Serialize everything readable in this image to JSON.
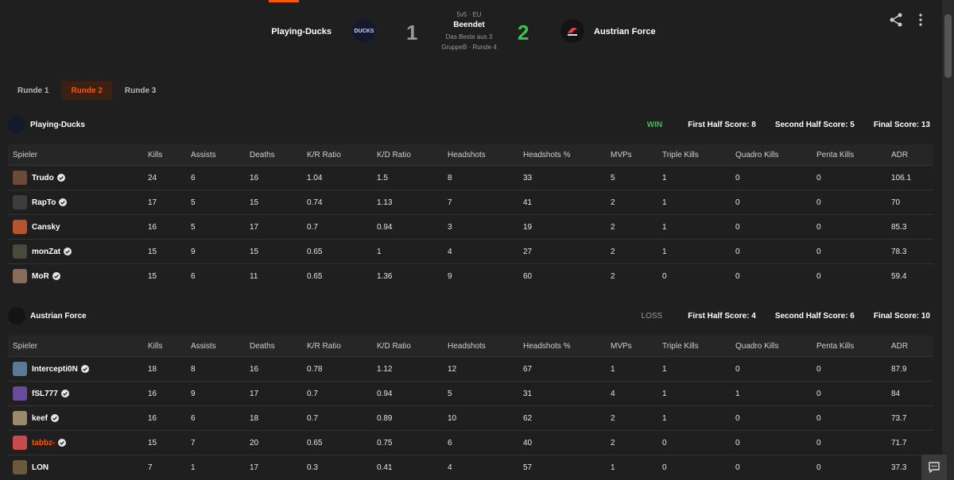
{
  "header": {
    "team_left": "Playing-Ducks",
    "team_left_logo_text": "DUCKS",
    "score_left": "1",
    "format": "5v5 · EU",
    "status": "Beendet",
    "best_of": "Das Beste aus 3",
    "group_round": "GruppeB · Runde 4",
    "score_right": "2",
    "team_right": "Austrian Force",
    "accent_color": "#ff5500",
    "win_color": "#3cc14b"
  },
  "tabs": [
    {
      "label": "Runde 1",
      "active": false
    },
    {
      "label": "Runde 2",
      "active": true
    },
    {
      "label": "Runde 3",
      "active": false
    }
  ],
  "columns": [
    "Spieler",
    "Kills",
    "Assists",
    "Deaths",
    "K/R Ratio",
    "K/D Ratio",
    "Headshots",
    "Headshots %",
    "MVPs",
    "Triple Kills",
    "Quadro Kills",
    "Penta Kills",
    "ADR"
  ],
  "teams": [
    {
      "name": "Playing-Ducks",
      "result": "WIN",
      "first_half": "First Half Score: 8",
      "second_half": "Second Half Score: 5",
      "final": "Final Score: 13",
      "players": [
        {
          "name": "Trudo",
          "verified": true,
          "stats": [
            "24",
            "6",
            "16",
            "1.04",
            "1.5",
            "8",
            "33",
            "5",
            "1",
            "0",
            "0",
            "106.1"
          ]
        },
        {
          "name": "RapTo",
          "verified": true,
          "stats": [
            "17",
            "5",
            "15",
            "0.74",
            "1.13",
            "7",
            "41",
            "2",
            "1",
            "0",
            "0",
            "70"
          ]
        },
        {
          "name": "Cansky",
          "verified": false,
          "stats": [
            "16",
            "5",
            "17",
            "0.7",
            "0.94",
            "3",
            "19",
            "2",
            "1",
            "0",
            "0",
            "85.3"
          ]
        },
        {
          "name": "monZat",
          "verified": true,
          "stats": [
            "15",
            "9",
            "15",
            "0.65",
            "1",
            "4",
            "27",
            "2",
            "1",
            "0",
            "0",
            "78.3"
          ]
        },
        {
          "name": "MoR",
          "verified": true,
          "stats": [
            "15",
            "6",
            "11",
            "0.65",
            "1.36",
            "9",
            "60",
            "2",
            "0",
            "0",
            "0",
            "59.4"
          ]
        }
      ]
    },
    {
      "name": "Austrian Force",
      "result": "LOSS",
      "first_half": "First Half Score: 4",
      "second_half": "Second Half Score: 6",
      "final": "Final Score: 10",
      "players": [
        {
          "name": "Intercepti0N",
          "verified": true,
          "stats": [
            "18",
            "8",
            "16",
            "0.78",
            "1.12",
            "12",
            "67",
            "1",
            "1",
            "0",
            "0",
            "87.9"
          ]
        },
        {
          "name": "fSL777",
          "verified": true,
          "stats": [
            "16",
            "9",
            "17",
            "0.7",
            "0.94",
            "5",
            "31",
            "4",
            "1",
            "1",
            "0",
            "84"
          ]
        },
        {
          "name": "keef",
          "verified": true,
          "stats": [
            "16",
            "6",
            "18",
            "0.7",
            "0.89",
            "10",
            "62",
            "2",
            "1",
            "0",
            "0",
            "73.7"
          ]
        },
        {
          "name": "tabbz-",
          "verified": true,
          "highlight": true,
          "stats": [
            "15",
            "7",
            "20",
            "0.65",
            "0.75",
            "6",
            "40",
            "2",
            "0",
            "0",
            "0",
            "71.7"
          ]
        },
        {
          "name": "LON",
          "verified": false,
          "stats": [
            "7",
            "1",
            "17",
            "0.3",
            "0.41",
            "4",
            "57",
            "1",
            "0",
            "0",
            "0",
            "37.3"
          ]
        }
      ]
    }
  ]
}
